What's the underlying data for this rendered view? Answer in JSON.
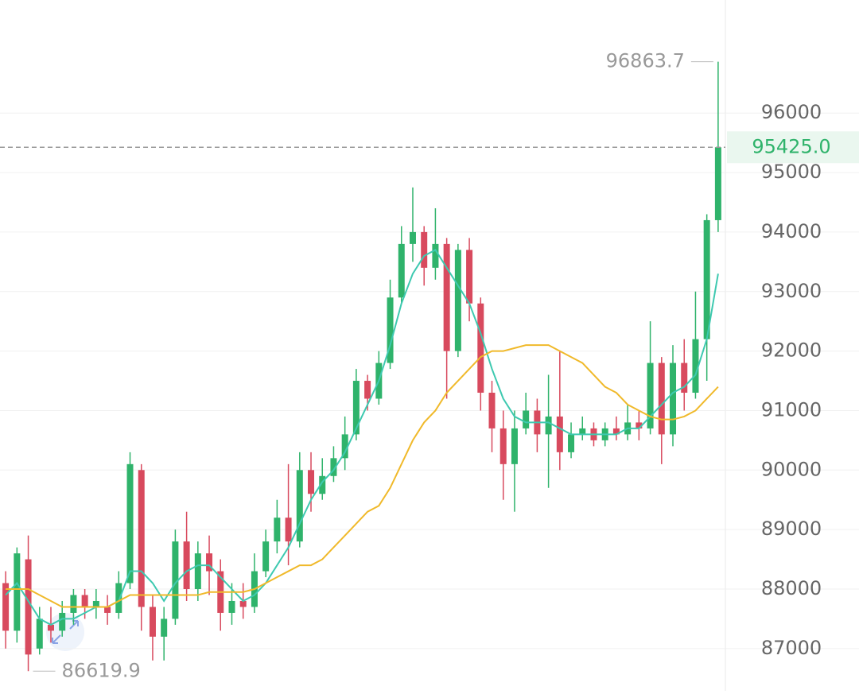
{
  "chart_data": {
    "type": "candlestick",
    "open": [
      88100,
      87300,
      88500,
      87000,
      87400,
      87300,
      87600,
      87900,
      87700,
      87700,
      87600,
      88100,
      90000,
      87700,
      87200,
      87500,
      88800,
      88000,
      88600,
      88300,
      87600,
      87800,
      87700,
      88300,
      88800,
      89200,
      88800,
      90000,
      89600,
      89900,
      90200,
      90600,
      91500,
      91200,
      91800,
      92900,
      93800,
      94000,
      93400,
      93800,
      92000,
      93700,
      92800,
      91300,
      90700,
      90100,
      90700,
      91000,
      90600,
      90900,
      90300,
      90600,
      90700,
      90500,
      90700,
      90600,
      90800,
      90700,
      91800,
      90600,
      91800,
      91300,
      92200,
      94200
    ],
    "high": [
      88300,
      88700,
      88900,
      87700,
      87700,
      87800,
      88000,
      88000,
      88000,
      87900,
      88300,
      90300,
      90100,
      87900,
      87700,
      89000,
      89300,
      88800,
      88900,
      88500,
      88100,
      88100,
      88600,
      89000,
      89500,
      90100,
      90300,
      90300,
      90200,
      90400,
      90900,
      91700,
      91600,
      92000,
      93200,
      94100,
      94750,
      94100,
      94400,
      93900,
      93800,
      93900,
      92900,
      91500,
      91000,
      91000,
      91300,
      91200,
      91600,
      92000,
      90800,
      90900,
      90800,
      90800,
      90900,
      91100,
      91000,
      92500,
      91900,
      92100,
      92200,
      93000,
      94300,
      96863.7
    ],
    "low": [
      87000,
      87100,
      86619.9,
      86900,
      87100,
      87200,
      87400,
      87500,
      87500,
      87400,
      87500,
      88000,
      87300,
      86800,
      86800,
      87400,
      87800,
      87800,
      87900,
      87300,
      87400,
      87500,
      87600,
      88200,
      88600,
      88400,
      88700,
      89300,
      89500,
      89800,
      90000,
      90500,
      91000,
      91100,
      91700,
      92800,
      93500,
      93100,
      93200,
      91200,
      91900,
      92500,
      91000,
      90300,
      89500,
      89300,
      90600,
      90300,
      89700,
      90000,
      90200,
      90500,
      90400,
      90400,
      90500,
      90500,
      90500,
      90600,
      90100,
      90400,
      91000,
      91200,
      91500,
      94000
    ],
    "close": [
      87300,
      88600,
      86900,
      87500,
      87300,
      87600,
      87900,
      87700,
      87800,
      87600,
      88100,
      90100,
      87700,
      87200,
      87500,
      88800,
      88000,
      88600,
      88300,
      87600,
      87800,
      87700,
      88300,
      88800,
      89200,
      88800,
      90000,
      89600,
      89900,
      90200,
      90600,
      91500,
      91200,
      91800,
      92900,
      93800,
      94000,
      93400,
      93800,
      92000,
      93700,
      92800,
      91300,
      90700,
      90100,
      90700,
      91000,
      90600,
      90900,
      90300,
      90600,
      90700,
      90500,
      90700,
      90600,
      90800,
      90700,
      91800,
      90600,
      91800,
      91300,
      92200,
      94200,
      95425
    ],
    "up_color": "#2fb36b",
    "down_color": "#d84a5e",
    "lines": [
      {
        "color": "#3ec9b0",
        "values": [
          87900,
          88100,
          87800,
          87500,
          87400,
          87500,
          87500,
          87600,
          87700,
          87700,
          87800,
          88300,
          88300,
          88100,
          87800,
          88100,
          88300,
          88400,
          88400,
          88200,
          88000,
          87800,
          87900,
          88100,
          88400,
          88700,
          89100,
          89500,
          89800,
          90000,
          90300,
          90700,
          91100,
          91500,
          92100,
          92800,
          93300,
          93600,
          93700,
          93400,
          93100,
          92800,
          92300,
          91700,
          91200,
          90900,
          90800,
          90800,
          90800,
          90700,
          90600,
          90600,
          90600,
          90600,
          90600,
          90700,
          90700,
          90900,
          91100,
          91300,
          91400,
          91600,
          92200,
          93300
        ]
      },
      {
        "color": "#f0b92a",
        "values": [
          88000,
          88000,
          88000,
          87900,
          87800,
          87700,
          87700,
          87700,
          87700,
          87700,
          87800,
          87900,
          87900,
          87900,
          87900,
          87900,
          87900,
          87900,
          87950,
          87950,
          87950,
          87950,
          88000,
          88100,
          88200,
          88300,
          88400,
          88400,
          88500,
          88700,
          88900,
          89100,
          89300,
          89400,
          89700,
          90100,
          90500,
          90800,
          91000,
          91300,
          91500,
          91700,
          91900,
          92000,
          92000,
          92050,
          92100,
          92100,
          92100,
          92000,
          91900,
          91800,
          91600,
          91400,
          91300,
          91100,
          91000,
          90900,
          90850,
          90850,
          90900,
          91000,
          91200,
          91400
        ]
      }
    ],
    "last_price": {
      "value": 95425,
      "label": "95425.0"
    },
    "ylim": [
      86290,
      97900
    ],
    "yticks": [
      87000,
      88000,
      89000,
      90000,
      91000,
      92000,
      93000,
      94000,
      95000,
      96000
    ],
    "grid": true
  }
}
